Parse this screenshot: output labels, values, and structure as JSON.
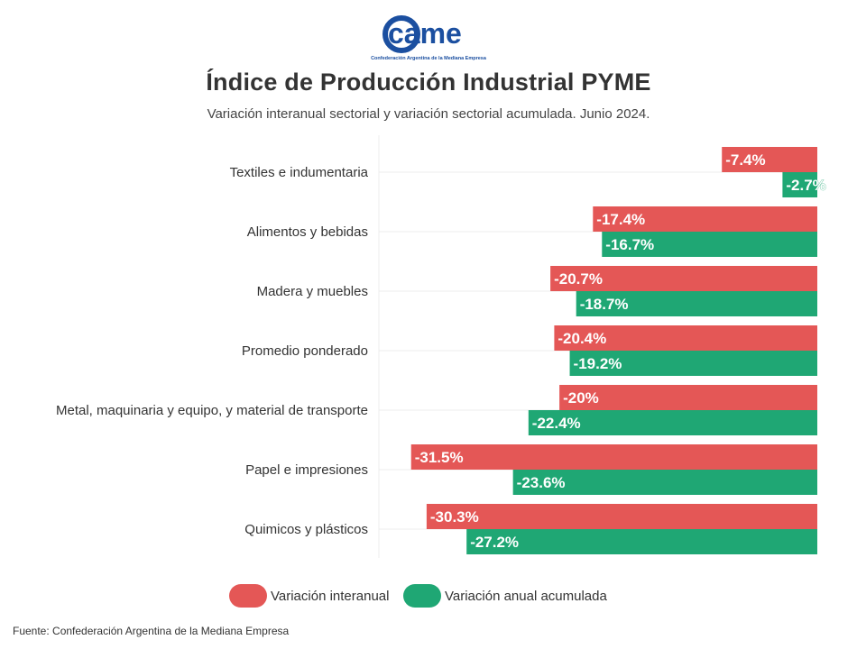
{
  "logo": {
    "wordmark": "came",
    "tagline": "Confederación Argentina de la Mediana Empresa",
    "color": "#1b4fa0"
  },
  "title": "Índice de Producción Industrial PYME",
  "subtitle": "Variación interanual sectorial y variación sectorial acumulada. Junio 2024.",
  "legend": {
    "items": [
      {
        "label": "Variación interanual",
        "color": "#e45756"
      },
      {
        "label": "Variación anual acumulada",
        "color": "#1fa774"
      }
    ]
  },
  "source": "Fuente: Confederación Argentina de la Mediana Empresa",
  "chart_data": {
    "type": "bar",
    "orientation": "horizontal",
    "categories": [
      "Textiles e indumentaria",
      "Alimentos y bebidas",
      "Madera y muebles",
      "Promedio ponderado",
      "Metal, maquinaria y equipo, y material de transporte",
      "Papel e impresiones",
      "Quimicos y plásticos"
    ],
    "series": [
      {
        "name": "Variación interanual",
        "color": "#e45756",
        "values": [
          -7.4,
          -17.4,
          -20.7,
          -20.4,
          -20,
          -31.5,
          -30.3
        ],
        "labels": [
          "-7.4%",
          "-17.4%",
          "-20.7%",
          "-20.4%",
          "-20%",
          "-31.5%",
          "-30.3%"
        ]
      },
      {
        "name": "Variación anual acumulada",
        "color": "#1fa774",
        "values": [
          -2.7,
          -16.7,
          -18.7,
          -19.2,
          -22.4,
          -23.6,
          -27.2
        ],
        "labels": [
          "-2.7%",
          "-16.7%",
          "-18.7%",
          "-19.2%",
          "-22.4%",
          "-23.6%",
          "-27.2%"
        ]
      }
    ],
    "xlim": [
      -34,
      0
    ],
    "grid": true,
    "legend": "bottom-center"
  }
}
